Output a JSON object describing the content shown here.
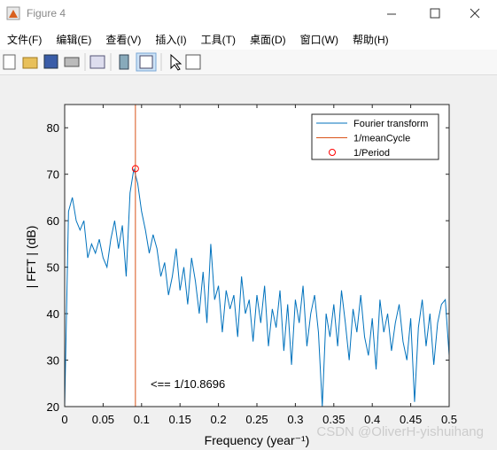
{
  "window": {
    "title": "Figure 4",
    "menu": [
      "文件(F)",
      "编辑(E)",
      "查看(V)",
      "插入(I)",
      "工具(T)",
      "桌面(D)",
      "窗口(W)",
      "帮助(H)"
    ],
    "watermark": "CSDN @OliverH-yishuihang"
  },
  "chart_data": {
    "type": "line",
    "xlabel": "Frequency (year⁻¹)",
    "ylabel": "| FFT | (dB)",
    "annotation": "<== 1/10.8696",
    "xlim": [
      0,
      0.5
    ],
    "ylim": [
      20,
      85
    ],
    "xticks": [
      0,
      0.05,
      0.1,
      0.15,
      0.2,
      0.25,
      0.3,
      0.35,
      0.4,
      0.45,
      0.5
    ],
    "yticks": [
      20,
      30,
      40,
      50,
      60,
      70,
      80
    ],
    "legend": "upper right",
    "series": [
      {
        "name": "Fourier transform",
        "color": "#0072bd",
        "x": [
          0,
          0.005,
          0.01,
          0.015,
          0.02,
          0.025,
          0.03,
          0.035,
          0.04,
          0.045,
          0.05,
          0.055,
          0.06,
          0.065,
          0.07,
          0.075,
          0.08,
          0.085,
          0.09,
          0.095,
          0.1,
          0.105,
          0.11,
          0.115,
          0.12,
          0.125,
          0.13,
          0.135,
          0.14,
          0.145,
          0.15,
          0.155,
          0.16,
          0.165,
          0.17,
          0.175,
          0.18,
          0.185,
          0.19,
          0.195,
          0.2,
          0.205,
          0.21,
          0.215,
          0.22,
          0.225,
          0.23,
          0.235,
          0.24,
          0.245,
          0.25,
          0.255,
          0.26,
          0.265,
          0.27,
          0.275,
          0.28,
          0.285,
          0.29,
          0.295,
          0.3,
          0.305,
          0.31,
          0.315,
          0.32,
          0.325,
          0.33,
          0.335,
          0.34,
          0.345,
          0.35,
          0.355,
          0.36,
          0.365,
          0.37,
          0.375,
          0.38,
          0.385,
          0.39,
          0.395,
          0.4,
          0.405,
          0.41,
          0.415,
          0.42,
          0.425,
          0.43,
          0.435,
          0.44,
          0.445,
          0.45,
          0.455,
          0.46,
          0.465,
          0.47,
          0.475,
          0.48,
          0.485,
          0.49,
          0.495,
          0.5
        ],
        "values": [
          20,
          62,
          65,
          60,
          58,
          60,
          52,
          55,
          53,
          56,
          52,
          50,
          56,
          60,
          54,
          59,
          48,
          66,
          71.2,
          68,
          62,
          58,
          53,
          57,
          54,
          48,
          51,
          44,
          48,
          54,
          45,
          50,
          42,
          52,
          47,
          40,
          49,
          38,
          55,
          43,
          46,
          36,
          45,
          41,
          44,
          35,
          48,
          40,
          43,
          34,
          44,
          38,
          46,
          33,
          41,
          37,
          45,
          32,
          42,
          29,
          43,
          38,
          46,
          33,
          40,
          44,
          36,
          20,
          40,
          35,
          42,
          33,
          45,
          38,
          30,
          41,
          36,
          44,
          35,
          31,
          39,
          28,
          43,
          36,
          40,
          32,
          38,
          42,
          34,
          30,
          39,
          21,
          37,
          43,
          33,
          40,
          29,
          38,
          42,
          43,
          31
        ]
      },
      {
        "name": "1/meanCycle",
        "color": "#d95319",
        "x": 0.092
      },
      {
        "name": "1/Period",
        "color": "#ff0000",
        "marker": "circle",
        "x": [
          0.092
        ],
        "values": [
          71.2
        ]
      }
    ]
  }
}
